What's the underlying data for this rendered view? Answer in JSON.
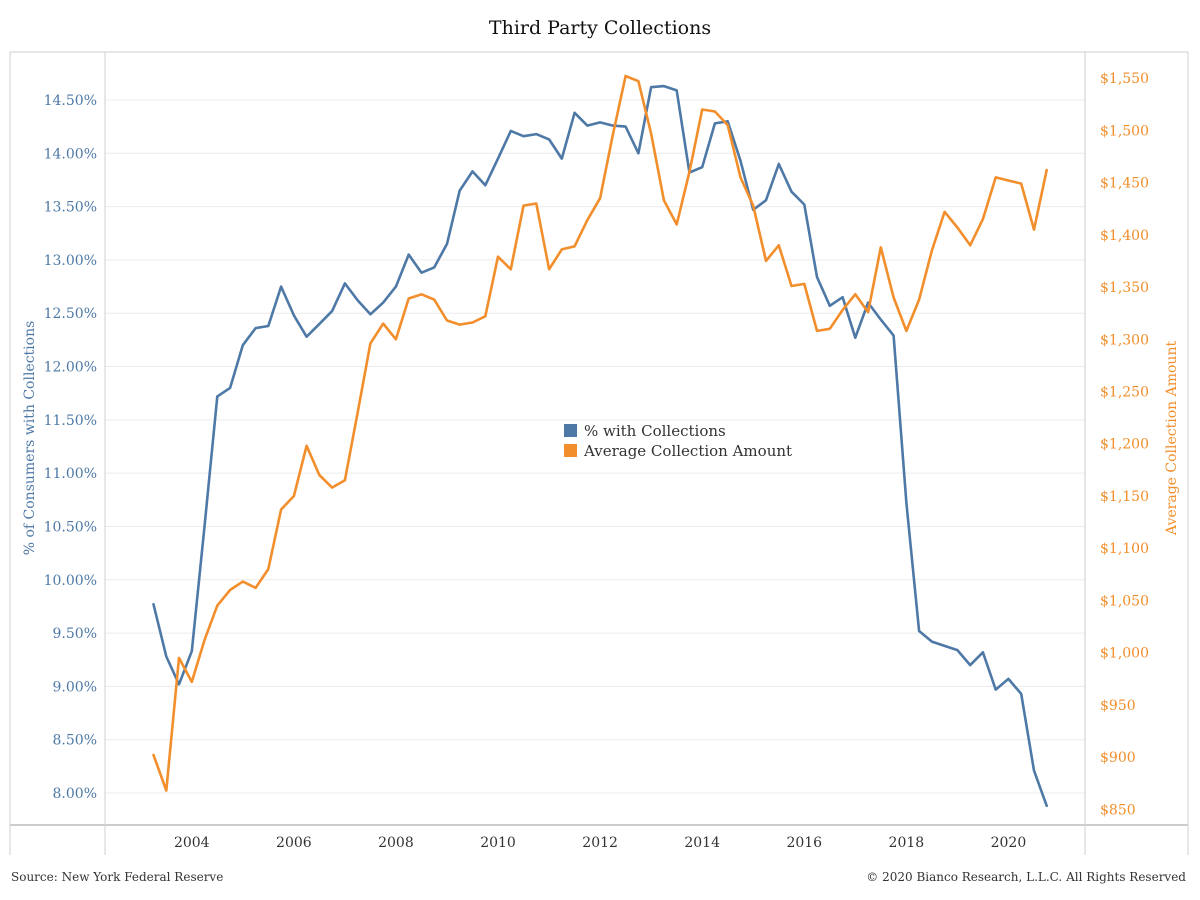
{
  "chart_data": {
    "type": "line",
    "title": "Third Party Collections",
    "y_left_label": "% of Consumers with Collections",
    "y_right_label": "Average Collection Amount",
    "y_left_range": [
      7.7,
      14.95
    ],
    "y_right_range": [
      835,
      1575
    ],
    "x_range": [
      2002.3,
      2021.5
    ],
    "x_ticks": [
      2004,
      2006,
      2008,
      2010,
      2012,
      2014,
      2016,
      2018,
      2020
    ],
    "x_tick_labels": [
      "2004",
      "2006",
      "2008",
      "2010",
      "2012",
      "2014",
      "2016",
      "2018",
      "2020"
    ],
    "y_left_ticks": [
      8.0,
      8.5,
      9.0,
      9.5,
      10.0,
      10.5,
      11.0,
      11.5,
      12.0,
      12.5,
      13.0,
      13.5,
      14.0,
      14.5
    ],
    "y_left_tick_labels": [
      "8.00%",
      "8.50%",
      "9.00%",
      "9.50%",
      "10.00%",
      "10.50%",
      "11.00%",
      "11.50%",
      "12.00%",
      "12.50%",
      "13.00%",
      "13.50%",
      "14.00%",
      "14.50%"
    ],
    "y_right_ticks": [
      850,
      900,
      950,
      1000,
      1050,
      1100,
      1150,
      1200,
      1250,
      1300,
      1350,
      1400,
      1450,
      1500,
      1550
    ],
    "y_right_tick_labels": [
      "$850",
      "$900",
      "$950",
      "$1,000",
      "$1,050",
      "$1,100",
      "$1,150",
      "$1,200",
      "$1,250",
      "$1,300",
      "$1,350",
      "$1,400",
      "$1,450",
      "$1,500",
      "$1,550"
    ],
    "grid": true,
    "legend_position": "center",
    "series": [
      {
        "name": "% with Collections",
        "axis": "left",
        "color": "#4e79a7",
        "x": [
          2003.25,
          2003.5,
          2003.75,
          2004.0,
          2004.25,
          2004.5,
          2004.75,
          2005.0,
          2005.25,
          2005.5,
          2005.75,
          2006.0,
          2006.25,
          2006.5,
          2006.75,
          2007.0,
          2007.25,
          2007.5,
          2007.75,
          2008.0,
          2008.25,
          2008.5,
          2008.75,
          2009.0,
          2009.25,
          2009.5,
          2009.75,
          2010.0,
          2010.25,
          2010.5,
          2010.75,
          2011.0,
          2011.25,
          2011.5,
          2011.75,
          2012.0,
          2012.25,
          2012.5,
          2012.75,
          2013.0,
          2013.25,
          2013.5,
          2013.75,
          2014.0,
          2014.25,
          2014.5,
          2014.75,
          2015.0,
          2015.25,
          2015.5,
          2015.75,
          2016.0,
          2016.25,
          2016.5,
          2016.75,
          2017.0,
          2017.25,
          2017.5,
          2017.75,
          2018.0,
          2018.25,
          2018.5,
          2018.75,
          2019.0,
          2019.25,
          2019.5,
          2019.75,
          2020.0,
          2020.25,
          2020.5,
          2020.75
        ],
        "values": [
          9.77,
          9.28,
          9.02,
          9.33,
          10.5,
          11.72,
          11.8,
          12.2,
          12.36,
          12.38,
          12.75,
          12.48,
          12.28,
          12.4,
          12.52,
          12.78,
          12.62,
          12.49,
          12.6,
          12.75,
          13.05,
          12.88,
          12.93,
          13.15,
          13.65,
          13.83,
          13.7,
          13.95,
          14.21,
          14.16,
          14.18,
          14.13,
          13.95,
          14.38,
          14.26,
          14.29,
          14.26,
          14.25,
          14.0,
          14.62,
          14.63,
          14.59,
          13.82,
          13.87,
          14.28,
          14.3,
          13.93,
          13.47,
          13.56,
          13.9,
          13.64,
          13.52,
          12.84,
          12.57,
          12.65,
          12.27,
          12.6,
          12.44,
          12.29,
          10.72,
          9.52,
          9.42,
          9.38,
          9.34,
          9.2,
          9.32,
          8.97,
          9.07,
          8.93,
          8.21,
          7.88
        ]
      },
      {
        "name": "Average Collection Amount",
        "axis": "right",
        "color": "#f28e2b",
        "x": [
          2003.25,
          2003.5,
          2003.75,
          2004.0,
          2004.25,
          2004.5,
          2004.75,
          2005.0,
          2005.25,
          2005.5,
          2005.75,
          2006.0,
          2006.25,
          2006.5,
          2006.75,
          2007.0,
          2007.25,
          2007.5,
          2007.75,
          2008.0,
          2008.25,
          2008.5,
          2008.75,
          2009.0,
          2009.25,
          2009.5,
          2009.75,
          2010.0,
          2010.25,
          2010.5,
          2010.75,
          2011.0,
          2011.25,
          2011.5,
          2011.75,
          2012.0,
          2012.25,
          2012.5,
          2012.75,
          2013.0,
          2013.25,
          2013.5,
          2013.75,
          2014.0,
          2014.25,
          2014.5,
          2014.75,
          2015.0,
          2015.25,
          2015.5,
          2015.75,
          2016.0,
          2016.25,
          2016.5,
          2016.75,
          2017.0,
          2017.25,
          2017.5,
          2017.75,
          2018.0,
          2018.25,
          2018.5,
          2018.75,
          2019.0,
          2019.25,
          2019.5,
          2019.75,
          2020.0,
          2020.25,
          2020.5,
          2020.75
        ],
        "values": [
          902,
          868,
          995,
          972,
          1012,
          1045,
          1060,
          1068,
          1062,
          1080,
          1137,
          1150,
          1198,
          1170,
          1158,
          1165,
          1230,
          1296,
          1315,
          1300,
          1339,
          1343,
          1338,
          1318,
          1314,
          1316,
          1322,
          1379,
          1367,
          1428,
          1430,
          1367,
          1386,
          1389,
          1414,
          1435,
          1496,
          1552,
          1547,
          1497,
          1433,
          1410,
          1460,
          1520,
          1518,
          1505,
          1455,
          1428,
          1375,
          1390,
          1351,
          1353,
          1308,
          1310,
          1328,
          1343,
          1326,
          1388,
          1340,
          1308,
          1338,
          1385,
          1422,
          1407,
          1390,
          1415,
          1455,
          1452,
          1449,
          1405,
          1462
        ]
      }
    ],
    "source": "Source: New York Federal Reserve",
    "copyright": "© 2020 Bianco Research, L.L.C. All Rights Reserved"
  }
}
